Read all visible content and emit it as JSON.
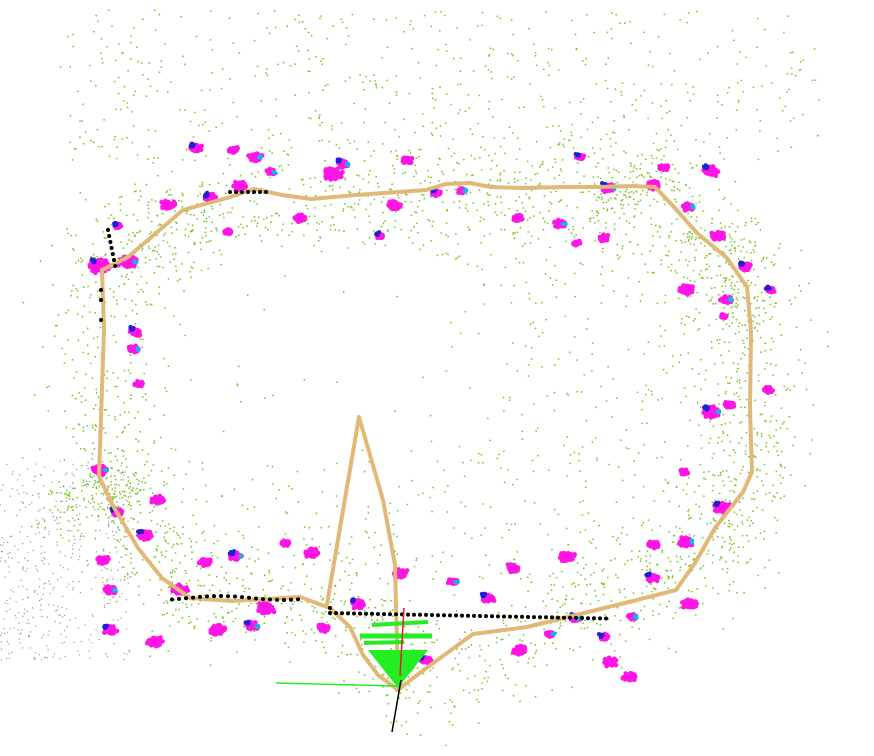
{
  "view": {
    "kind": "slam-point-cloud-map",
    "background": "#ffffff"
  },
  "colors": {
    "ground_points": "#7cc627",
    "grey_points": "#9a9a9a",
    "trajectory": "#e1b877",
    "keyframes": "#000000",
    "landmark_magenta": "#ff14e6",
    "landmark_blue": "#2020d0",
    "landmark_cyan": "#14b4e6",
    "camera_frustum": "#22ee22",
    "axis_red": "#dd2222",
    "axis_black": "#000000"
  },
  "icons": {
    "camera": "camera-frustum-icon"
  }
}
